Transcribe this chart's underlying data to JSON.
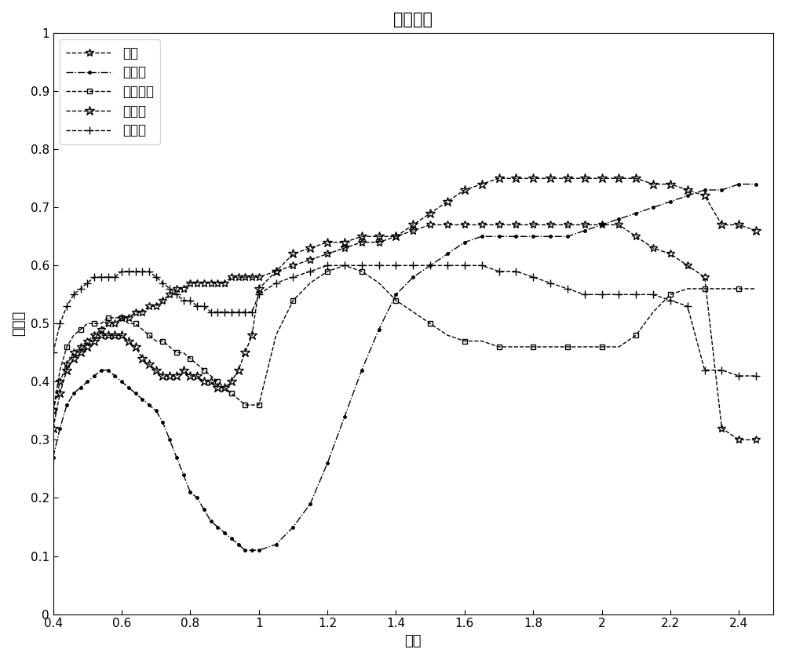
{
  "title": "原始光谱",
  "xlabel": "波长",
  "ylabel": "反射率",
  "xlim": [
    0.4,
    2.5
  ],
  "ylim": [
    0,
    1.0
  ],
  "xticks": [
    0.4,
    0.6,
    0.8,
    1.0,
    1.2,
    1.4,
    1.6,
    1.8,
    2.0,
    2.2,
    2.4
  ],
  "yticks": [
    0,
    0.1,
    0.2,
    0.3,
    0.4,
    0.5,
    0.6,
    0.7,
    0.8,
    0.9,
    1
  ],
  "series": [
    {
      "name": "滑石",
      "color": "#000000",
      "linestyle": "--",
      "marker": "*",
      "markersize": 7,
      "markevery": 1,
      "x": [
        0.4,
        0.42,
        0.44,
        0.46,
        0.48,
        0.5,
        0.52,
        0.54,
        0.56,
        0.58,
        0.6,
        0.62,
        0.64,
        0.66,
        0.68,
        0.7,
        0.72,
        0.74,
        0.76,
        0.78,
        0.8,
        0.82,
        0.84,
        0.86,
        0.88,
        0.9,
        0.92,
        0.94,
        0.96,
        0.98,
        1.0,
        1.05,
        1.1,
        1.15,
        1.2,
        1.25,
        1.3,
        1.35,
        1.4,
        1.45,
        1.5,
        1.55,
        1.6,
        1.65,
        1.7,
        1.75,
        1.8,
        1.85,
        1.9,
        1.95,
        2.0,
        2.05,
        2.1,
        2.15,
        2.2,
        2.25,
        2.3,
        2.35,
        2.4,
        2.45
      ],
      "y": [
        0.35,
        0.4,
        0.43,
        0.45,
        0.46,
        0.47,
        0.48,
        0.49,
        0.5,
        0.5,
        0.51,
        0.51,
        0.52,
        0.52,
        0.53,
        0.53,
        0.54,
        0.55,
        0.56,
        0.56,
        0.57,
        0.57,
        0.57,
        0.57,
        0.57,
        0.57,
        0.58,
        0.58,
        0.58,
        0.58,
        0.58,
        0.59,
        0.6,
        0.61,
        0.62,
        0.63,
        0.64,
        0.64,
        0.65,
        0.66,
        0.67,
        0.67,
        0.67,
        0.67,
        0.67,
        0.67,
        0.67,
        0.67,
        0.67,
        0.67,
        0.67,
        0.67,
        0.65,
        0.63,
        0.62,
        0.6,
        0.58,
        0.32,
        0.3,
        0.3
      ]
    },
    {
      "name": "橄榄石",
      "color": "#000000",
      "linestyle": "-.",
      "marker": ".",
      "markersize": 5,
      "markevery": 1,
      "x": [
        0.4,
        0.42,
        0.44,
        0.46,
        0.48,
        0.5,
        0.52,
        0.54,
        0.56,
        0.58,
        0.6,
        0.62,
        0.64,
        0.66,
        0.68,
        0.7,
        0.72,
        0.74,
        0.76,
        0.78,
        0.8,
        0.82,
        0.84,
        0.86,
        0.88,
        0.9,
        0.92,
        0.94,
        0.96,
        0.98,
        1.0,
        1.05,
        1.1,
        1.15,
        1.2,
        1.25,
        1.3,
        1.35,
        1.4,
        1.45,
        1.5,
        1.55,
        1.6,
        1.65,
        1.7,
        1.75,
        1.8,
        1.85,
        1.9,
        1.95,
        2.0,
        2.05,
        2.1,
        2.15,
        2.2,
        2.25,
        2.3,
        2.35,
        2.4,
        2.45
      ],
      "y": [
        0.27,
        0.32,
        0.36,
        0.38,
        0.39,
        0.4,
        0.41,
        0.42,
        0.42,
        0.41,
        0.4,
        0.39,
        0.38,
        0.37,
        0.36,
        0.35,
        0.33,
        0.3,
        0.27,
        0.24,
        0.21,
        0.2,
        0.18,
        0.16,
        0.15,
        0.14,
        0.13,
        0.12,
        0.11,
        0.11,
        0.11,
        0.12,
        0.15,
        0.19,
        0.26,
        0.34,
        0.42,
        0.49,
        0.55,
        0.58,
        0.6,
        0.62,
        0.64,
        0.65,
        0.65,
        0.65,
        0.65,
        0.65,
        0.65,
        0.66,
        0.67,
        0.68,
        0.69,
        0.7,
        0.71,
        0.72,
        0.73,
        0.73,
        0.74,
        0.74
      ]
    },
    {
      "name": "顽火辉石",
      "color": "#000000",
      "linestyle": "--",
      "marker": "s",
      "markersize": 5,
      "markevery": 2,
      "x": [
        0.4,
        0.42,
        0.44,
        0.46,
        0.48,
        0.5,
        0.52,
        0.54,
        0.56,
        0.58,
        0.6,
        0.62,
        0.64,
        0.66,
        0.68,
        0.7,
        0.72,
        0.74,
        0.76,
        0.78,
        0.8,
        0.82,
        0.84,
        0.86,
        0.88,
        0.9,
        0.92,
        0.94,
        0.96,
        0.98,
        1.0,
        1.05,
        1.1,
        1.15,
        1.2,
        1.25,
        1.3,
        1.35,
        1.4,
        1.45,
        1.5,
        1.55,
        1.6,
        1.65,
        1.7,
        1.75,
        1.8,
        1.85,
        1.9,
        1.95,
        2.0,
        2.05,
        2.1,
        2.15,
        2.2,
        2.25,
        2.3,
        2.35,
        2.4,
        2.45
      ],
      "y": [
        0.35,
        0.42,
        0.46,
        0.48,
        0.49,
        0.5,
        0.5,
        0.5,
        0.51,
        0.51,
        0.51,
        0.5,
        0.5,
        0.49,
        0.48,
        0.47,
        0.47,
        0.46,
        0.45,
        0.45,
        0.44,
        0.43,
        0.42,
        0.41,
        0.4,
        0.39,
        0.38,
        0.37,
        0.36,
        0.36,
        0.36,
        0.48,
        0.54,
        0.57,
        0.59,
        0.6,
        0.59,
        0.57,
        0.54,
        0.52,
        0.5,
        0.48,
        0.47,
        0.47,
        0.46,
        0.46,
        0.46,
        0.46,
        0.46,
        0.46,
        0.46,
        0.46,
        0.48,
        0.52,
        0.55,
        0.56,
        0.56,
        0.56,
        0.56,
        0.56
      ]
    },
    {
      "name": "角闪石",
      "color": "#000000",
      "linestyle": "--",
      "marker": "$\\bigstar$",
      "markersize": 8,
      "markevery": 1,
      "x": [
        0.4,
        0.42,
        0.44,
        0.46,
        0.48,
        0.5,
        0.52,
        0.54,
        0.56,
        0.58,
        0.6,
        0.62,
        0.64,
        0.66,
        0.68,
        0.7,
        0.72,
        0.74,
        0.76,
        0.78,
        0.8,
        0.82,
        0.84,
        0.86,
        0.88,
        0.9,
        0.92,
        0.94,
        0.96,
        0.98,
        1.0,
        1.05,
        1.1,
        1.15,
        1.2,
        1.25,
        1.3,
        1.35,
        1.4,
        1.45,
        1.5,
        1.55,
        1.6,
        1.65,
        1.7,
        1.75,
        1.8,
        1.85,
        1.9,
        1.95,
        2.0,
        2.05,
        2.1,
        2.15,
        2.2,
        2.25,
        2.3,
        2.35,
        2.4,
        2.45
      ],
      "y": [
        0.32,
        0.38,
        0.42,
        0.44,
        0.45,
        0.46,
        0.47,
        0.48,
        0.48,
        0.48,
        0.48,
        0.47,
        0.46,
        0.44,
        0.43,
        0.42,
        0.41,
        0.41,
        0.41,
        0.42,
        0.41,
        0.41,
        0.4,
        0.4,
        0.39,
        0.39,
        0.4,
        0.42,
        0.45,
        0.48,
        0.56,
        0.59,
        0.62,
        0.63,
        0.64,
        0.64,
        0.65,
        0.65,
        0.65,
        0.67,
        0.69,
        0.71,
        0.73,
        0.74,
        0.75,
        0.75,
        0.75,
        0.75,
        0.75,
        0.75,
        0.75,
        0.75,
        0.75,
        0.74,
        0.74,
        0.73,
        0.72,
        0.67,
        0.67,
        0.66
      ]
    },
    {
      "name": "透闪石",
      "color": "#000000",
      "linestyle": "--",
      "marker": "+",
      "markersize": 7,
      "markevery": 1,
      "x": [
        0.4,
        0.42,
        0.44,
        0.46,
        0.48,
        0.5,
        0.52,
        0.54,
        0.56,
        0.58,
        0.6,
        0.62,
        0.64,
        0.66,
        0.68,
        0.7,
        0.72,
        0.74,
        0.76,
        0.78,
        0.8,
        0.82,
        0.84,
        0.86,
        0.88,
        0.9,
        0.92,
        0.94,
        0.96,
        0.98,
        1.0,
        1.05,
        1.1,
        1.15,
        1.2,
        1.25,
        1.3,
        1.35,
        1.4,
        1.45,
        1.5,
        1.55,
        1.6,
        1.65,
        1.7,
        1.75,
        1.8,
        1.85,
        1.9,
        1.95,
        2.0,
        2.05,
        2.1,
        2.15,
        2.2,
        2.25,
        2.3,
        2.35,
        2.4,
        2.45
      ],
      "y": [
        0.45,
        0.5,
        0.53,
        0.55,
        0.56,
        0.57,
        0.58,
        0.58,
        0.58,
        0.58,
        0.59,
        0.59,
        0.59,
        0.59,
        0.59,
        0.58,
        0.57,
        0.56,
        0.55,
        0.54,
        0.54,
        0.53,
        0.53,
        0.52,
        0.52,
        0.52,
        0.52,
        0.52,
        0.52,
        0.52,
        0.55,
        0.57,
        0.58,
        0.59,
        0.6,
        0.6,
        0.6,
        0.6,
        0.6,
        0.6,
        0.6,
        0.6,
        0.6,
        0.6,
        0.59,
        0.59,
        0.58,
        0.57,
        0.56,
        0.55,
        0.55,
        0.55,
        0.55,
        0.55,
        0.54,
        0.53,
        0.42,
        0.42,
        0.41,
        0.41
      ]
    }
  ]
}
